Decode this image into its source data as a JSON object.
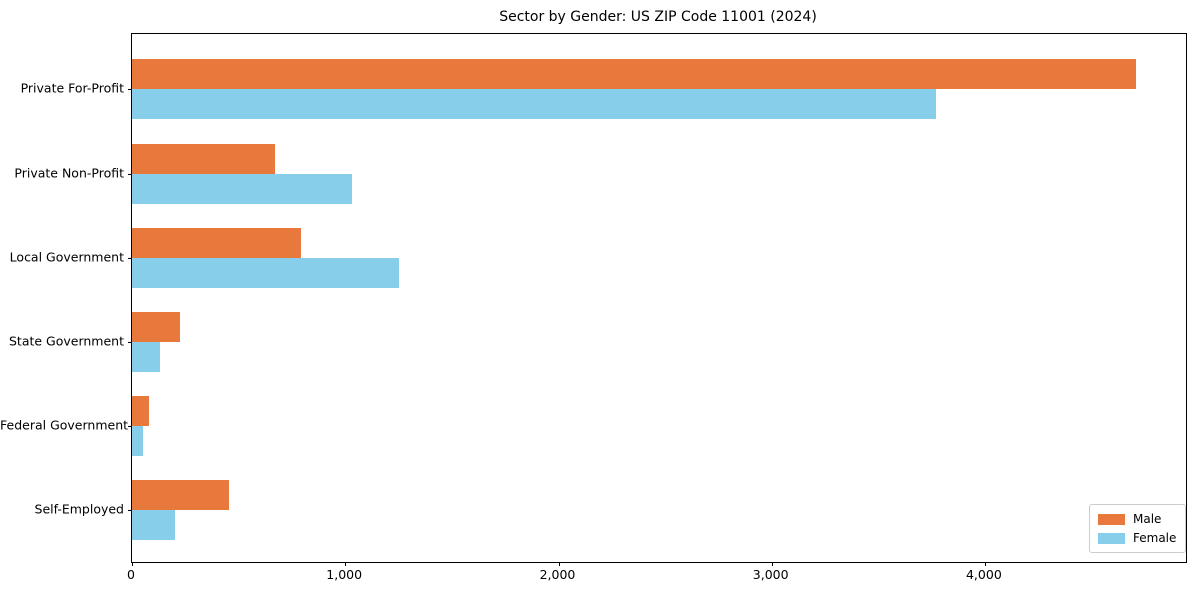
{
  "title": "Sector by Gender: US ZIP Code 11001 (2024)",
  "chart_data": {
    "type": "bar",
    "orientation": "horizontal",
    "title": "Sector by Gender: US ZIP Code 11001 (2024)",
    "categories": [
      "Private For-Profit",
      "Private Non-Profit",
      "Local Government",
      "State Government",
      "Federal Government",
      "Self-Employed"
    ],
    "series": [
      {
        "name": "Male",
        "color": "#e8783c",
        "values": [
          4710,
          670,
          790,
          225,
          80,
          455
        ]
      },
      {
        "name": "Female",
        "color": "#87ceeb",
        "values": [
          3770,
          1030,
          1250,
          130,
          50,
          200
        ]
      }
    ],
    "xlabel": "",
    "ylabel": "",
    "xlim": [
      0,
      4943
    ],
    "xticks": [
      0,
      1000,
      2000,
      3000,
      4000
    ],
    "xtick_labels": [
      "0",
      "1,000",
      "2,000",
      "3,000",
      "4,000"
    ],
    "legend_position": "lower right",
    "grid": false,
    "axis_color": "#000000",
    "background_color": "#ffffff"
  }
}
